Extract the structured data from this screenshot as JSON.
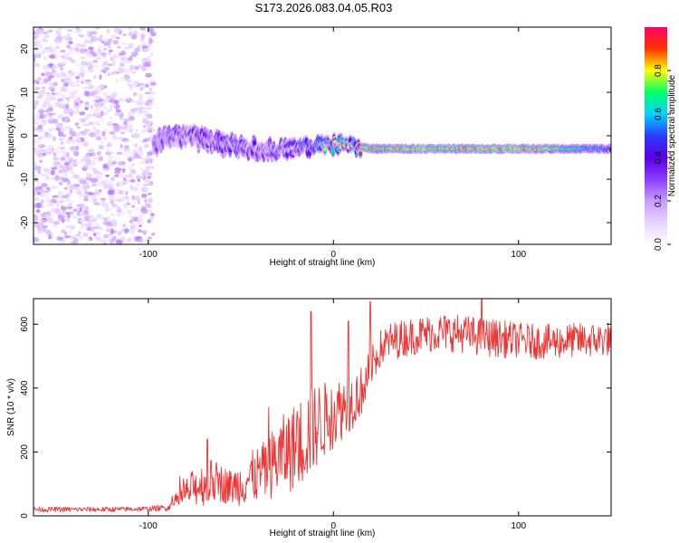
{
  "title": "S173.2026.083.04.05.R03",
  "colors": {
    "snr_line": "#ee3333",
    "colormap": [
      "#ffffff",
      "#e8d4ff",
      "#c89cff",
      "#8a3cff",
      "#5a00e6",
      "#2a3cff",
      "#00d4ff",
      "#00ff66",
      "#ffff00",
      "#ff3300",
      "#ff0066"
    ]
  },
  "chart_data": [
    {
      "type": "heatmap",
      "name": "spectrum",
      "xlabel": "Height of straight line (km)",
      "ylabel": "Frequency (Hz)",
      "xlim": [
        -162,
        150
      ],
      "ylim": [
        -25,
        25
      ],
      "xticks": [
        -100,
        0,
        100
      ],
      "xtick_labels": [
        "-100",
        "0",
        "100"
      ],
      "yticks": [
        -20,
        -10,
        0,
        10,
        20
      ],
      "ytick_labels": [
        "-20",
        "-10",
        "0",
        "10",
        "20"
      ],
      "colorbar": {
        "label": "Normalized spectral amplitude",
        "range": [
          0,
          1
        ],
        "ticks": [
          0.0,
          0.2,
          0.4,
          0.6,
          0.8
        ],
        "tick_labels": [
          "0.0",
          "0.2",
          "0.4",
          "0.6",
          "0.8"
        ]
      },
      "signal_track": {
        "x": [
          -100,
          -80,
          -60,
          -40,
          -20,
          0,
          20,
          40,
          60,
          80,
          100,
          120,
          150
        ],
        "frequency": [
          -2,
          0,
          -2,
          -3,
          -3,
          -2,
          -3,
          -3,
          -3,
          -3,
          -3,
          -3,
          -3
        ],
        "amplitude": [
          0.3,
          0.35,
          0.4,
          0.35,
          0.45,
          0.7,
          0.8,
          0.85,
          0.8,
          0.85,
          0.85,
          0.75,
          0.5
        ]
      },
      "noise_region": {
        "x_range": [
          -162,
          -97
        ],
        "amplitude": "low"
      }
    },
    {
      "type": "line",
      "name": "snr",
      "xlabel": "Height of straight line (km)",
      "ylabel": "SNR (10 * v/v)",
      "xlim": [
        -162,
        150
      ],
      "ylim": [
        0,
        680
      ],
      "xticks": [
        -100,
        0,
        100
      ],
      "xtick_labels": [
        "-100",
        "0",
        "100"
      ],
      "yticks": [
        0,
        200,
        400,
        600
      ],
      "ytick_labels": [
        "0",
        "200",
        "400",
        "600"
      ],
      "series": [
        {
          "name": "SNR",
          "x": [
            -162,
            -140,
            -120,
            -100,
            -90,
            -85,
            -80,
            -75,
            -70,
            -65,
            -60,
            -55,
            -50,
            -45,
            -40,
            -35,
            -30,
            -25,
            -20,
            -15,
            -10,
            -5,
            0,
            5,
            10,
            15,
            20,
            25,
            30,
            40,
            50,
            60,
            70,
            80,
            90,
            100,
            110,
            120,
            130,
            140,
            150
          ],
          "mean": [
            20,
            20,
            20,
            22,
            25,
            45,
            70,
            90,
            100,
            110,
            100,
            90,
            100,
            120,
            130,
            150,
            180,
            200,
            220,
            250,
            280,
            300,
            320,
            340,
            360,
            390,
            460,
            520,
            545,
            560,
            570,
            575,
            570,
            560,
            555,
            550,
            545,
            545,
            550,
            550,
            555
          ],
          "amp": [
            8,
            8,
            8,
            8,
            10,
            25,
            45,
            60,
            70,
            70,
            60,
            55,
            70,
            80,
            90,
            100,
            120,
            130,
            140,
            150,
            140,
            120,
            110,
            100,
            90,
            80,
            60,
            60,
            60,
            60,
            60,
            60,
            60,
            60,
            60,
            55,
            55,
            55,
            55,
            55,
            55
          ],
          "maxima": [
            [
              -68,
              240
            ],
            [
              -35,
              340
            ],
            [
              -12,
              640
            ],
            [
              8,
              610
            ],
            [
              20,
              670
            ],
            [
              80,
              680
            ]
          ]
        }
      ]
    }
  ]
}
